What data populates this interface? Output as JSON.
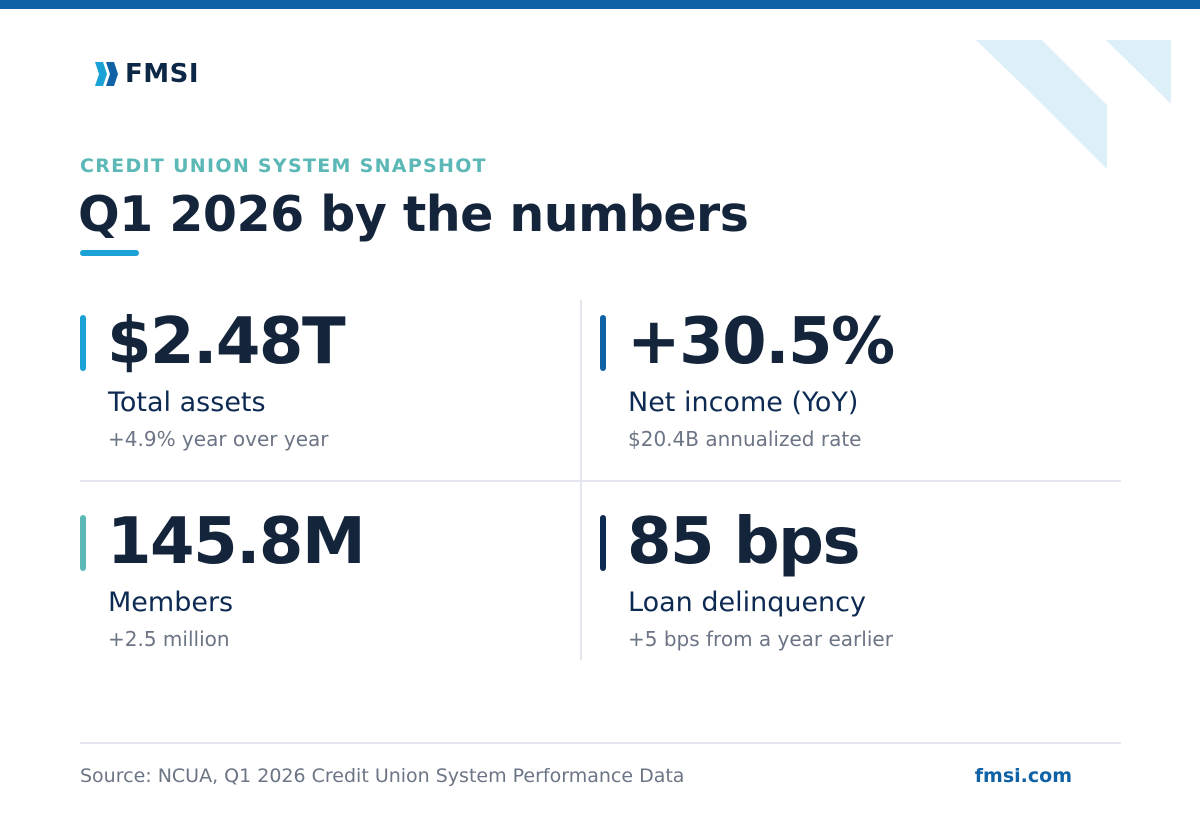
{
  "brand": {
    "name": "FMSI",
    "primary_color": "#0f62a6",
    "navy_color": "#14243a",
    "teal_color": "#5bb8b6",
    "accent_color": "#1aa1d6"
  },
  "header": {
    "eyebrow": "CREDIT UNION SYSTEM SNAPSHOT",
    "title": "Q1 2026 by the numbers"
  },
  "stats": [
    {
      "value": "$2.48T",
      "label": "Total assets",
      "sub": "+4.9% year over year",
      "bar_color": "#1aa1d6"
    },
    {
      "value": "+30.5%",
      "label": "Net income (YoY)",
      "sub": "$20.4B annualized rate",
      "bar_color": "#0f62a6"
    },
    {
      "value": "145.8M",
      "label": "Members",
      "sub": "+2.5 million",
      "bar_color": "#5bb8b6"
    },
    {
      "value": "85 bps",
      "label": "Loan delinquency",
      "sub": "+5 bps from a year earlier",
      "bar_color": "#0d2a52"
    }
  ],
  "footer": {
    "source": "Source: NCUA, Q1 2026 Credit Union System Performance Data",
    "site": "fmsi.com"
  }
}
